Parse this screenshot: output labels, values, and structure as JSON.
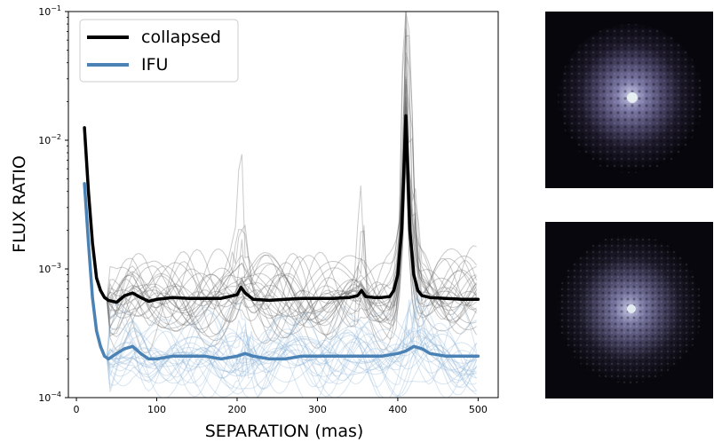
{
  "chart_data": {
    "type": "line",
    "title": "",
    "xlabel": "SEPARATION (mas)",
    "ylabel": "FLUX RATIO",
    "xlim": [
      -10,
      525
    ],
    "ylim": [
      0.0001,
      0.1
    ],
    "yscale": "log",
    "xticks": [
      0,
      100,
      200,
      300,
      400,
      500
    ],
    "xtick_labels": [
      "0",
      "100",
      "200",
      "300",
      "400",
      "500"
    ],
    "yticks": [
      0.0001,
      0.001,
      0.01,
      0.1
    ],
    "ytick_labels": [
      {
        "base": "10",
        "exp": "−4"
      },
      {
        "base": "10",
        "exp": "−3"
      },
      {
        "base": "10",
        "exp": "−2"
      },
      {
        "base": "10",
        "exp": "−1"
      }
    ],
    "legend": {
      "placement": "top-left"
    },
    "series": [
      {
        "name": "collapsed",
        "color": "#000000",
        "x": [
          10,
          15,
          20,
          25,
          30,
          35,
          40,
          50,
          60,
          70,
          80,
          90,
          100,
          120,
          140,
          160,
          180,
          200,
          205,
          210,
          220,
          240,
          260,
          280,
          300,
          320,
          340,
          350,
          355,
          360,
          370,
          380,
          390,
          395,
          400,
          405,
          410,
          415,
          420,
          425,
          430,
          440,
          460,
          480,
          500
        ],
        "y": [
          0.0125,
          0.004,
          0.0016,
          0.00085,
          0.00068,
          0.0006,
          0.00057,
          0.00055,
          0.00062,
          0.00065,
          0.0006,
          0.00056,
          0.00058,
          0.0006,
          0.00059,
          0.00059,
          0.00059,
          0.00063,
          0.00072,
          0.00065,
          0.00058,
          0.00057,
          0.00058,
          0.00059,
          0.00059,
          0.00059,
          0.0006,
          0.00062,
          0.00068,
          0.00061,
          0.0006,
          0.0006,
          0.00061,
          0.00068,
          0.0009,
          0.002,
          0.0155,
          0.002,
          0.0009,
          0.00068,
          0.00062,
          0.0006,
          0.00059,
          0.00058,
          0.00058
        ]
      },
      {
        "name": "IFU",
        "color": "#4a82b5",
        "x": [
          10,
          15,
          20,
          25,
          30,
          35,
          40,
          45,
          50,
          60,
          70,
          80,
          90,
          100,
          120,
          140,
          160,
          180,
          200,
          210,
          220,
          240,
          260,
          280,
          300,
          320,
          340,
          360,
          380,
          400,
          410,
          420,
          430,
          440,
          460,
          480,
          500
        ],
        "y": [
          0.0046,
          0.0016,
          0.0006,
          0.00033,
          0.00025,
          0.00021,
          0.0002,
          0.00021,
          0.00022,
          0.00024,
          0.00025,
          0.00022,
          0.0002,
          0.0002,
          0.00021,
          0.00021,
          0.00021,
          0.0002,
          0.00021,
          0.00022,
          0.00021,
          0.0002,
          0.0002,
          0.00021,
          0.00021,
          0.00021,
          0.00021,
          0.00021,
          0.00021,
          0.00022,
          0.00023,
          0.00025,
          0.00024,
          0.00022,
          0.00021,
          0.00021,
          0.00021
        ]
      }
    ],
    "background_traces": "many thin individual curves per series (gray for collapsed, light blue for IFU)"
  },
  "images": {
    "count": 2,
    "description_colormap": "dark purple background with speckle pattern, bright center"
  }
}
